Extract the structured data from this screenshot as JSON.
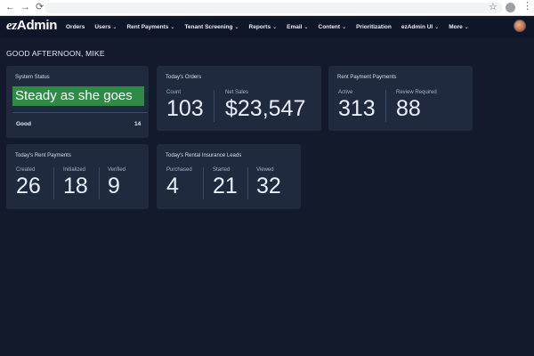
{
  "app": {
    "logo_prefix": "ez",
    "logo_suffix": "Admin",
    "nav": [
      {
        "label": "Orders",
        "dropdown": false
      },
      {
        "label": "Users",
        "dropdown": true
      },
      {
        "label": "Rent Payments",
        "dropdown": true
      },
      {
        "label": "Tenant Screening",
        "dropdown": true
      },
      {
        "label": "Reports",
        "dropdown": true
      },
      {
        "label": "Email",
        "dropdown": true
      },
      {
        "label": "Content",
        "dropdown": true
      },
      {
        "label": "Prioritization",
        "dropdown": false
      },
      {
        "label": "ezAdmin UI",
        "dropdown": true
      },
      {
        "label": "More",
        "dropdown": true
      }
    ]
  },
  "greeting": "GOOD AFTERNOON, MIKE",
  "system_status": {
    "title": "System Status",
    "banner": "Steady as she goes",
    "banner_color": "#2e8b45",
    "status_label": "Good",
    "status_count": "14"
  },
  "todays_orders": {
    "title": "Today's Orders",
    "metrics": [
      {
        "label": "Count",
        "value": "103"
      },
      {
        "label": "Net Sales",
        "value": "$23,547"
      }
    ]
  },
  "rent_payment_payments": {
    "title": "Rent Payment Payments",
    "metrics": [
      {
        "label": "Active",
        "value": "313"
      },
      {
        "label": "Review Required",
        "value": "88"
      }
    ]
  },
  "todays_rent_payments": {
    "title": "Today's Rent Payments",
    "metrics": [
      {
        "label": "Created",
        "value": "26"
      },
      {
        "label": "Initialized",
        "value": "18"
      },
      {
        "label": "Verified",
        "value": "9"
      }
    ]
  },
  "rental_insurance_leads": {
    "title": "Today's Rental Insurance Leads",
    "metrics": [
      {
        "label": "Purchased",
        "value": "4"
      },
      {
        "label": "Started",
        "value": "21"
      },
      {
        "label": "Viewed",
        "value": "32"
      }
    ]
  }
}
